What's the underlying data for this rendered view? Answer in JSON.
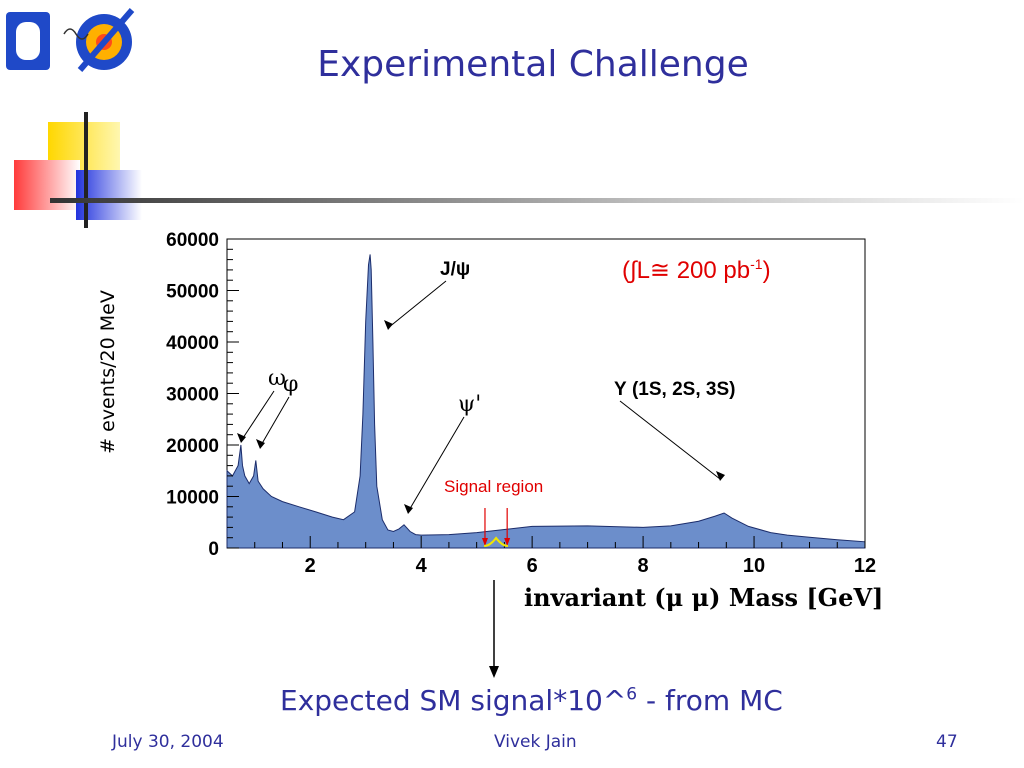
{
  "slide": {
    "title": "Experimental Challenge",
    "footer_date": "July 30, 2004",
    "footer_author": "Vivek Jain",
    "footer_page": "47",
    "bottom_note": "Expected SM signal*10^",
    "bottom_note_sup": "6",
    "bottom_note_tail": " - from MC"
  },
  "colors": {
    "title": "#2f2f9c",
    "histogram_fill": "#6c8ecb",
    "histogram_line": "#1c2d6b",
    "annotation_red": "#e00000",
    "signal_yellow": "#f2e600",
    "deco_yellow": "#ffd700",
    "deco_red": "#ff3b3b",
    "deco_blue": "#2233dd"
  },
  "chart_data": {
    "type": "area",
    "ylabel": "# events/20 MeV",
    "xlabel": "invariant (μ μ) Mass [GeV]",
    "xlim": [
      0.5,
      12
    ],
    "ylim": [
      0,
      60000
    ],
    "x_ticks": [
      2,
      4,
      6,
      8,
      10,
      12
    ],
    "y_ticks": [
      0,
      10000,
      20000,
      30000,
      40000,
      50000,
      60000
    ],
    "luminosity_label_pre": "(∫L≅ 200 pb",
    "luminosity_label_sup": "-1",
    "luminosity_label_post": ")",
    "series": [
      {
        "x": [
          0.5,
          0.6,
          0.7,
          0.75,
          0.78,
          0.82,
          0.9,
          0.98,
          1.02,
          1.06,
          1.15,
          1.3,
          1.5,
          1.8,
          2.1,
          2.4,
          2.6,
          2.8,
          2.9,
          2.95,
          3.0,
          3.05,
          3.08,
          3.1,
          3.13,
          3.16,
          3.2,
          3.3,
          3.4,
          3.5,
          3.6,
          3.69,
          3.8,
          3.9,
          4.0,
          4.5,
          5.0,
          5.5,
          6.0,
          7.0,
          8.0,
          8.5,
          9.0,
          9.3,
          9.46,
          9.6,
          9.9,
          10.3,
          10.6,
          11.0,
          11.5,
          12.0
        ],
        "y": [
          15000,
          14000,
          16000,
          20000,
          16000,
          14000,
          12500,
          14000,
          17000,
          13000,
          11500,
          10000,
          9000,
          8000,
          7000,
          6000,
          5500,
          7000,
          14000,
          26000,
          44000,
          55000,
          57000,
          54000,
          40000,
          24000,
          12000,
          5500,
          3500,
          3200,
          3700,
          4500,
          3200,
          2600,
          2500,
          2600,
          3000,
          3600,
          4200,
          4300,
          4000,
          4300,
          5200,
          6200,
          6800,
          5800,
          4200,
          3000,
          2500,
          2100,
          1600,
          1200
        ]
      }
    ],
    "annotations": [
      {
        "label": "J/ψ",
        "x": 3.2,
        "y": 41000
      },
      {
        "label": "ω",
        "x": 0.78,
        "y": 20000
      },
      {
        "label": "φ",
        "x": 1.02,
        "y": 18000
      },
      {
        "label": "ψ'",
        "x": 3.69,
        "y": 7000
      },
      {
        "label": "Υ (1S, 2S, 3S)",
        "x": 9.46,
        "y": 13000
      }
    ],
    "signal_region": {
      "label": "Signal region",
      "x_min": 5.15,
      "x_max": 5.55
    }
  }
}
